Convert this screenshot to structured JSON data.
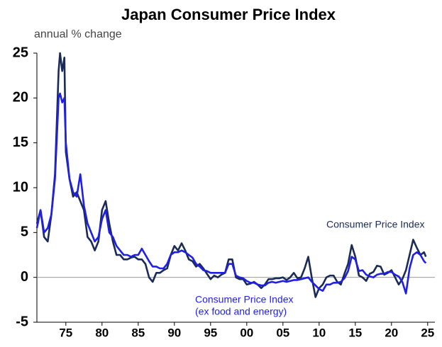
{
  "chart_data": {
    "type": "line",
    "title": "Japan Consumer Price Index",
    "subtitle": "annual % change",
    "xlim": [
      1971,
      2026
    ],
    "xticks": [
      {
        "value": 1975,
        "label": "75"
      },
      {
        "value": 1980,
        "label": "80"
      },
      {
        "value": 1985,
        "label": "85"
      },
      {
        "value": 1990,
        "label": "90"
      },
      {
        "value": 1995,
        "label": "95"
      },
      {
        "value": 2000,
        "label": "00"
      },
      {
        "value": 2005,
        "label": "05"
      },
      {
        "value": 2010,
        "label": "10"
      },
      {
        "value": 2015,
        "label": "15"
      },
      {
        "value": 2020,
        "label": "20"
      },
      {
        "value": 2025,
        "label": "25"
      }
    ],
    "ylim": [
      -5,
      25
    ],
    "yticks": [
      -5,
      0,
      5,
      10,
      15,
      20,
      25
    ],
    "x": [
      1971,
      1971.5,
      1972,
      1972.5,
      1973,
      1973.5,
      1974,
      1974.2,
      1974.5,
      1974.8,
      1975,
      1975.5,
      1976,
      1976.5,
      1977,
      1977.5,
      1978,
      1978.5,
      1979,
      1979.5,
      1980,
      1980.5,
      1981,
      1981.5,
      1982,
      1982.5,
      1983,
      1983.5,
      1984,
      1984.5,
      1985,
      1985.5,
      1986,
      1986.5,
      1987,
      1987.5,
      1988,
      1988.5,
      1989,
      1989.5,
      1990,
      1990.5,
      1991,
      1991.5,
      1992,
      1992.5,
      1993,
      1993.5,
      1994,
      1994.5,
      1995,
      1995.5,
      1996,
      1996.5,
      1997,
      1997.5,
      1998,
      1998.5,
      1999,
      1999.5,
      2000,
      2000.5,
      2001,
      2001.5,
      2002,
      2002.5,
      2003,
      2003.5,
      2004,
      2004.5,
      2005,
      2005.5,
      2006,
      2006.5,
      2007,
      2007.5,
      2008,
      2008.5,
      2009,
      2009.5,
      2010,
      2010.5,
      2011,
      2011.5,
      2012,
      2012.5,
      2013,
      2013.5,
      2014,
      2014.5,
      2015,
      2015.5,
      2016,
      2016.5,
      2017,
      2017.5,
      2018,
      2018.5,
      2019,
      2019.5,
      2020,
      2020.5,
      2021,
      2021.5,
      2022,
      2022.5,
      2023,
      2023.5,
      2024,
      2024.5,
      2024.75
    ],
    "series": [
      {
        "name": [
          "Consumer Price Index"
        ],
        "color": "#1a2b55",
        "values": [
          6,
          7.5,
          4.5,
          4,
          7,
          11.5,
          23,
          25,
          23,
          24.5,
          14,
          11,
          9,
          9.5,
          8.5,
          7.5,
          4.5,
          4,
          3,
          4,
          7.5,
          8.5,
          6,
          4,
          2.5,
          2.5,
          2,
          2,
          2.2,
          2.3,
          2,
          2,
          1.5,
          0,
          -0.5,
          0.5,
          0.5,
          0.8,
          1,
          2.5,
          3.5,
          3,
          3.8,
          3,
          2,
          1.8,
          1.2,
          1.5,
          1,
          0.4,
          -0.2,
          0.2,
          0,
          0.3,
          0.5,
          2,
          2,
          0,
          -0.2,
          -0.2,
          -0.8,
          -0.7,
          -0.5,
          -0.8,
          -1.2,
          -0.8,
          -0.2,
          -0.2,
          -0.1,
          -0.1,
          0,
          -0.3,
          0,
          0.5,
          -0.1,
          0,
          1,
          2.3,
          -0.1,
          -2.2,
          -1.2,
          -0.8,
          0,
          0.2,
          0.2,
          -0.5,
          -0.8,
          0.4,
          1.5,
          3.6,
          2.3,
          0.2,
          0,
          -0.4,
          0.4,
          0.6,
          1.3,
          1.2,
          0.3,
          0.5,
          0.8,
          0,
          -0.8,
          -0.2,
          0.8,
          2.5,
          4.2,
          3.3,
          2.5,
          2.8,
          2.3
        ]
      },
      {
        "name": [
          "Consumer Price Index",
          "(ex food and energy)"
        ],
        "color": "#1f1fe6",
        "values": [
          5.5,
          7.5,
          5,
          5.5,
          7,
          11,
          20,
          20.5,
          19.5,
          20,
          15,
          11,
          9.5,
          9,
          11.5,
          8,
          6,
          5,
          4,
          4.5,
          6.5,
          7.5,
          5,
          4.5,
          3.5,
          3,
          2.5,
          2.5,
          2.3,
          2.5,
          2.5,
          3.2,
          2.5,
          1.8,
          1.2,
          1.2,
          1,
          1,
          1.5,
          2.5,
          2.8,
          2.8,
          3,
          2.8,
          2.5,
          2.2,
          1.5,
          1.2,
          0.8,
          0.7,
          0.5,
          0.5,
          0.5,
          0.5,
          0.5,
          1.5,
          1.5,
          0.2,
          0,
          -0.1,
          -0.4,
          -0.6,
          -0.6,
          -0.8,
          -0.9,
          -0.9,
          -0.6,
          -0.5,
          -0.6,
          -0.5,
          -0.4,
          -0.5,
          -0.4,
          -0.3,
          -0.3,
          -0.2,
          -0.1,
          0,
          -0.5,
          -0.9,
          -1.3,
          -1.5,
          -0.8,
          -0.8,
          -0.6,
          -0.6,
          -0.5,
          -0.1,
          0.7,
          2.3,
          2,
          0.7,
          0.8,
          0.3,
          0.1,
          0,
          0.3,
          0.4,
          0.4,
          0.6,
          0.6,
          0.3,
          0.1,
          -0.5,
          -1.8,
          1,
          2.5,
          2.8,
          2.5,
          1.8,
          1.6
        ]
      }
    ]
  }
}
